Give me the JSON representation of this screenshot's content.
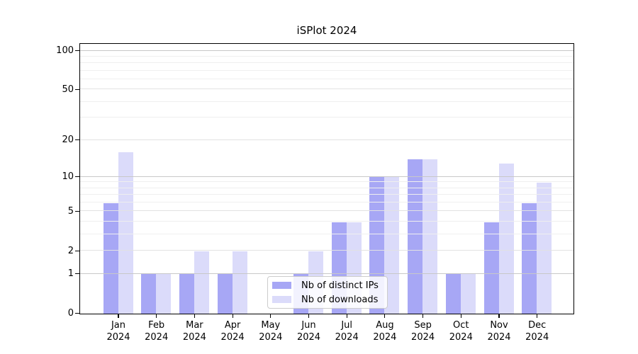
{
  "title": "iSPlot 2024",
  "chart_data": {
    "type": "bar",
    "title": "iSPlot 2024",
    "xlabel": "",
    "ylabel": "",
    "categories": [
      "Jan",
      "Feb",
      "Mar",
      "Apr",
      "May",
      "Jun",
      "Jul",
      "Aug",
      "Sep",
      "Oct",
      "Nov",
      "Dec"
    ],
    "category_year": "2024",
    "series": [
      {
        "name": "Nb of distinct IPs",
        "color": "#a7a7f5",
        "values": [
          6,
          1,
          1,
          1,
          0,
          1,
          4,
          10,
          14,
          1,
          4,
          6
        ]
      },
      {
        "name": "Nb of downloads",
        "color": "#dbdbfa",
        "values": [
          16,
          1,
          2,
          2,
          0,
          2,
          4,
          10,
          14,
          1,
          13,
          9
        ]
      }
    ],
    "y_axis": {
      "scale": "log1p",
      "ylim": [
        0,
        112
      ],
      "major_ticks": [
        0,
        1,
        2,
        5,
        10,
        20,
        50,
        100
      ],
      "decade_gridlines": [
        1,
        10,
        100
      ],
      "minor_gridlines": [
        3,
        4,
        6,
        7,
        8,
        9,
        30,
        40,
        60,
        70,
        80,
        90
      ]
    },
    "legend_position": "bottom-center",
    "grid": true
  },
  "colors": {
    "grid_decade": "#c8c8c8",
    "grid_major": "#e2e2e2",
    "grid_minor": "#efefef",
    "spine": "#000000"
  }
}
